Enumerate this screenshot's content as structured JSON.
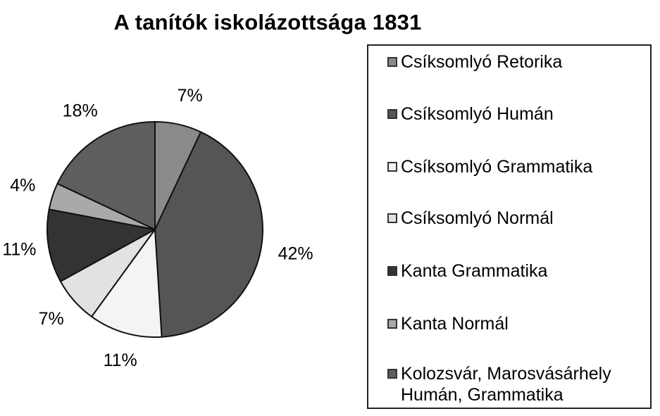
{
  "chart_data": {
    "type": "pie",
    "title": "A tanítók iskolázottsága 1831",
    "legend_position": "right",
    "slices": [
      {
        "label": "Csíksomlyó Retorika",
        "value": 7,
        "display": "7%",
        "color": "#8a8a8a"
      },
      {
        "label": "Csíksomlyó Humán",
        "value": 42,
        "display": "42%",
        "color": "#555555"
      },
      {
        "label": "Csíksomlyó Grammatika",
        "value": 11,
        "display": "11%",
        "color": "#f4f4f4"
      },
      {
        "label": "Csíksomlyó Normál",
        "value": 7,
        "display": "7%",
        "color": "#e2e2e2"
      },
      {
        "label": "Kanta Grammatika",
        "value": 11,
        "display": "11%",
        "color": "#333333"
      },
      {
        "label": "Kanta Normál",
        "value": 4,
        "display": "4%",
        "color": "#a9a9a9"
      },
      {
        "label": "Kolozsvár, Marosvásárhely\nHumán, Grammatika",
        "value": 18,
        "display": "18%",
        "color": "#5e5e5e"
      }
    ]
  }
}
